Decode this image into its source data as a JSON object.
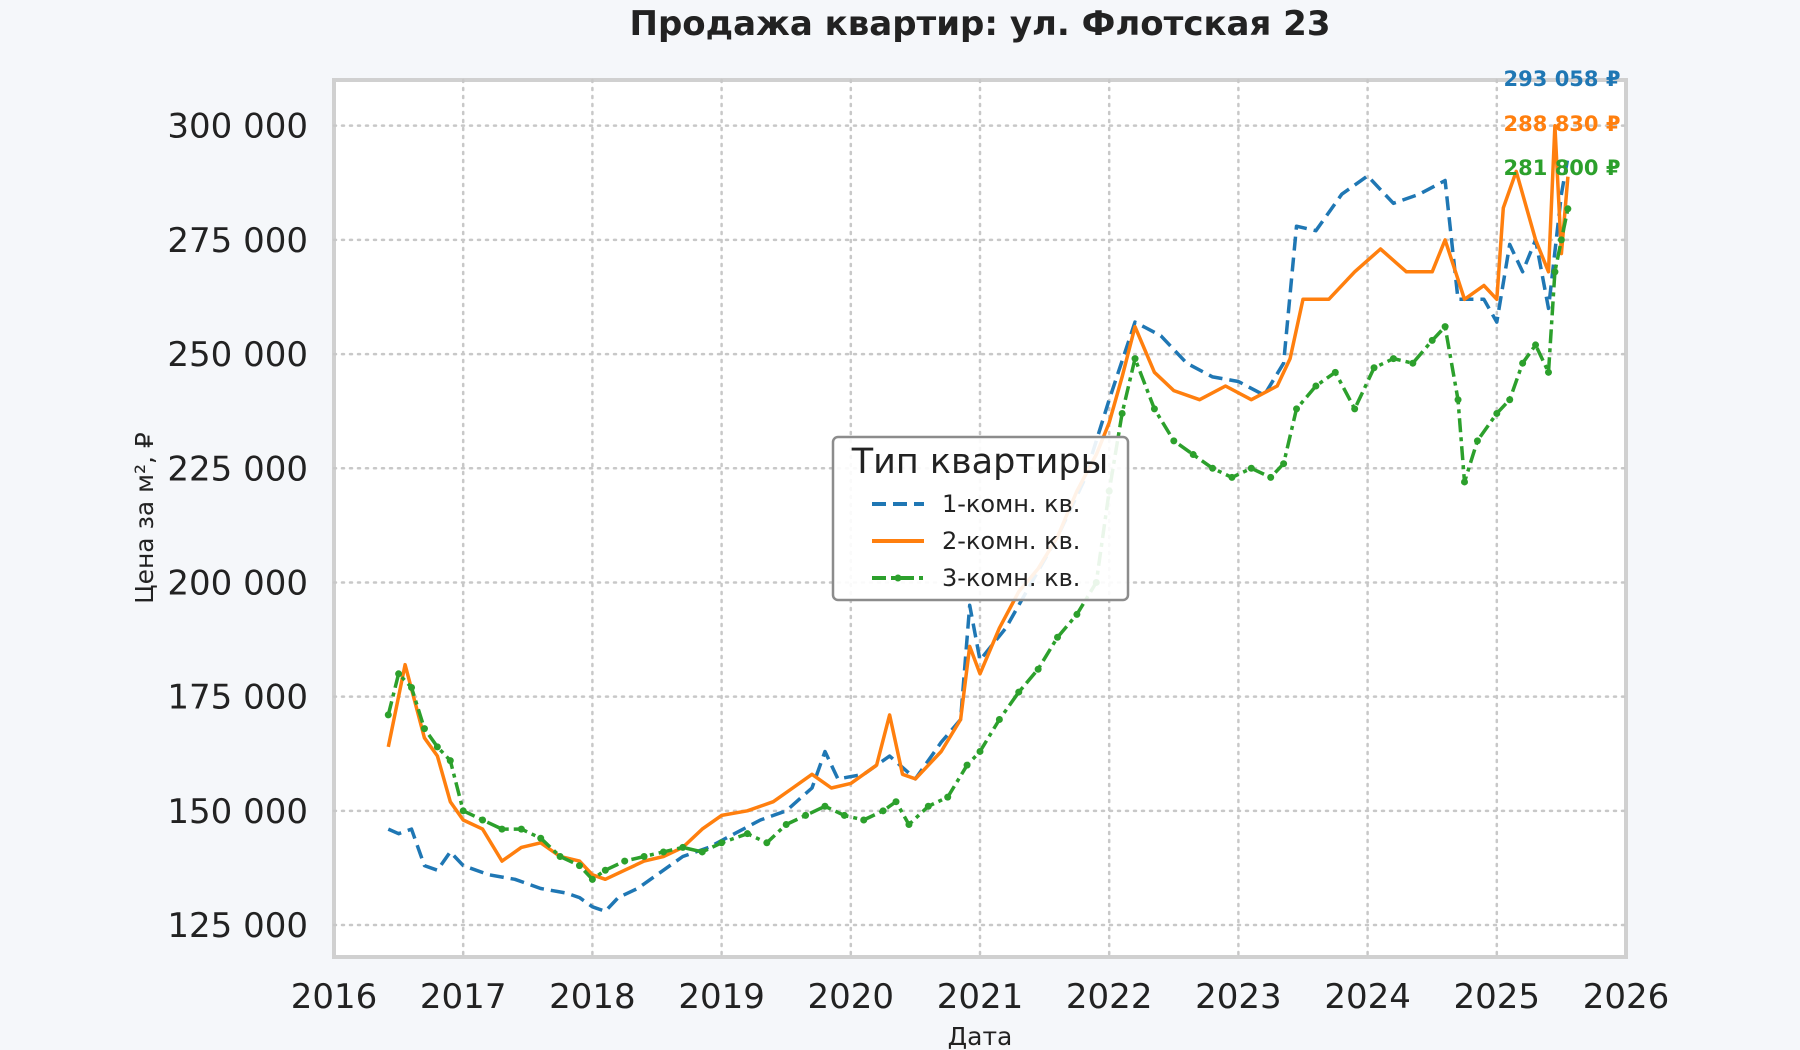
{
  "chart_data": {
    "type": "line",
    "title": "Продажа квартир: ул. Флотская 23",
    "xlabel": "Дата",
    "ylabel": "Цена за м², ₽",
    "xlim": [
      2016,
      2026
    ],
    "ylim": [
      118000,
      310000
    ],
    "x_ticks": [
      2016,
      2017,
      2018,
      2019,
      2020,
      2021,
      2022,
      2023,
      2024,
      2025,
      2026
    ],
    "x_tick_labels": [
      "2016",
      "2017",
      "2018",
      "2019",
      "2020",
      "2021",
      "2022",
      "2023",
      "2024",
      "2025",
      "2026"
    ],
    "y_ticks": [
      125000,
      150000,
      175000,
      200000,
      225000,
      250000,
      275000,
      300000
    ],
    "y_tick_labels": [
      "125 000",
      "150 000",
      "175 000",
      "200 000",
      "225 000",
      "250 000",
      "275 000",
      "300 000"
    ],
    "grid": true,
    "legend": {
      "title": "Тип квартиры",
      "placement": "center"
    },
    "series": [
      {
        "name": "1-комн. кв.",
        "color": "#1f77b4",
        "line_style": "dashed",
        "end_label": "293 058 ₽",
        "x": [
          2016.42,
          2016.5,
          2016.6,
          2016.7,
          2016.8,
          2016.9,
          2017.0,
          2017.2,
          2017.4,
          2017.6,
          2017.8,
          2017.9,
          2018.0,
          2018.1,
          2018.2,
          2018.35,
          2018.5,
          2018.7,
          2018.9,
          2019.1,
          2019.3,
          2019.5,
          2019.7,
          2019.8,
          2019.9,
          2020.1,
          2020.3,
          2020.5,
          2020.7,
          2020.85,
          2020.92,
          2021.0,
          2021.2,
          2021.4,
          2021.6,
          2021.8,
          2022.0,
          2022.2,
          2022.4,
          2022.6,
          2022.8,
          2023.0,
          2023.2,
          2023.35,
          2023.45,
          2023.6,
          2023.8,
          2024.0,
          2024.2,
          2024.4,
          2024.6,
          2024.7,
          2024.9,
          2025.0,
          2025.1,
          2025.2,
          2025.3,
          2025.4,
          2025.5,
          2025.55
        ],
        "y": [
          146000,
          145000,
          146000,
          138000,
          137000,
          141000,
          138000,
          136000,
          135000,
          133000,
          132000,
          131000,
          129000,
          128000,
          131000,
          133000,
          136000,
          140000,
          142000,
          145000,
          148000,
          150000,
          155000,
          163000,
          157000,
          158000,
          162000,
          157000,
          165000,
          170000,
          195000,
          183000,
          190000,
          200000,
          210000,
          222000,
          240000,
          257000,
          254000,
          248000,
          245000,
          244000,
          241000,
          248000,
          278000,
          277000,
          285000,
          289000,
          283000,
          285000,
          288000,
          262000,
          262000,
          257000,
          274000,
          268000,
          275000,
          260000,
          285000,
          293058
        ]
      },
      {
        "name": "2-комн. кв.",
        "color": "#ff7f0e",
        "line_style": "solid",
        "end_label": "288 830 ₽",
        "x": [
          2016.42,
          2016.55,
          2016.7,
          2016.8,
          2016.9,
          2017.0,
          2017.15,
          2017.3,
          2017.45,
          2017.6,
          2017.75,
          2017.9,
          2018.0,
          2018.1,
          2018.25,
          2018.4,
          2018.55,
          2018.7,
          2018.85,
          2019.0,
          2019.2,
          2019.4,
          2019.55,
          2019.7,
          2019.85,
          2020.0,
          2020.2,
          2020.3,
          2020.4,
          2020.5,
          2020.7,
          2020.85,
          2020.92,
          2021.0,
          2021.15,
          2021.3,
          2021.45,
          2021.6,
          2021.75,
          2021.9,
          2022.0,
          2022.1,
          2022.2,
          2022.35,
          2022.5,
          2022.7,
          2022.9,
          2023.1,
          2023.3,
          2023.4,
          2023.5,
          2023.7,
          2023.9,
          2024.1,
          2024.3,
          2024.5,
          2024.6,
          2024.75,
          2024.9,
          2025.0,
          2025.05,
          2025.15,
          2025.3,
          2025.4,
          2025.45,
          2025.5,
          2025.55
        ],
        "y": [
          164000,
          182000,
          166000,
          162000,
          152000,
          148000,
          146000,
          139000,
          142000,
          143000,
          140000,
          139000,
          136000,
          135000,
          137000,
          139000,
          140000,
          142000,
          146000,
          149000,
          150000,
          152000,
          155000,
          158000,
          155000,
          156000,
          160000,
          171000,
          158000,
          157000,
          163000,
          170000,
          186000,
          180000,
          190000,
          198000,
          203000,
          210000,
          220000,
          228000,
          235000,
          245000,
          256000,
          246000,
          242000,
          240000,
          243000,
          240000,
          243000,
          249000,
          262000,
          262000,
          268000,
          273000,
          268000,
          268000,
          275000,
          262000,
          265000,
          262000,
          282000,
          290000,
          275000,
          268000,
          300000,
          272000,
          288830
        ]
      },
      {
        "name": "3-комн. кв.",
        "color": "#2ca02c",
        "line_style": "dashdot",
        "markers": true,
        "end_label": "281 800 ₽",
        "x": [
          2016.42,
          2016.5,
          2016.6,
          2016.7,
          2016.8,
          2016.9,
          2017.0,
          2017.15,
          2017.3,
          2017.45,
          2017.6,
          2017.75,
          2017.9,
          2018.0,
          2018.1,
          2018.25,
          2018.4,
          2018.55,
          2018.7,
          2018.85,
          2019.0,
          2019.2,
          2019.35,
          2019.5,
          2019.65,
          2019.8,
          2019.95,
          2020.1,
          2020.25,
          2020.35,
          2020.45,
          2020.6,
          2020.75,
          2020.9,
          2021.0,
          2021.15,
          2021.3,
          2021.45,
          2021.6,
          2021.75,
          2021.9,
          2022.0,
          2022.1,
          2022.2,
          2022.35,
          2022.5,
          2022.65,
          2022.8,
          2022.95,
          2023.1,
          2023.25,
          2023.35,
          2023.45,
          2023.6,
          2023.75,
          2023.9,
          2024.05,
          2024.2,
          2024.35,
          2024.5,
          2024.6,
          2024.7,
          2024.75,
          2024.85,
          2025.0,
          2025.1,
          2025.2,
          2025.3,
          2025.4,
          2025.45,
          2025.5,
          2025.55
        ],
        "y": [
          171000,
          180000,
          177000,
          168000,
          164000,
          161000,
          150000,
          148000,
          146000,
          146000,
          144000,
          140000,
          138000,
          135000,
          137000,
          139000,
          140000,
          141000,
          142000,
          141000,
          143000,
          145000,
          143000,
          147000,
          149000,
          151000,
          149000,
          148000,
          150000,
          152000,
          147000,
          151000,
          153000,
          160000,
          163000,
          170000,
          176000,
          181000,
          188000,
          193000,
          200000,
          220000,
          237000,
          249000,
          238000,
          231000,
          228000,
          225000,
          223000,
          225000,
          223000,
          226000,
          238000,
          243000,
          246000,
          238000,
          247000,
          249000,
          248000,
          253000,
          256000,
          240000,
          222000,
          231000,
          237000,
          240000,
          248000,
          252000,
          246000,
          268000,
          275000,
          281800
        ]
      }
    ]
  }
}
